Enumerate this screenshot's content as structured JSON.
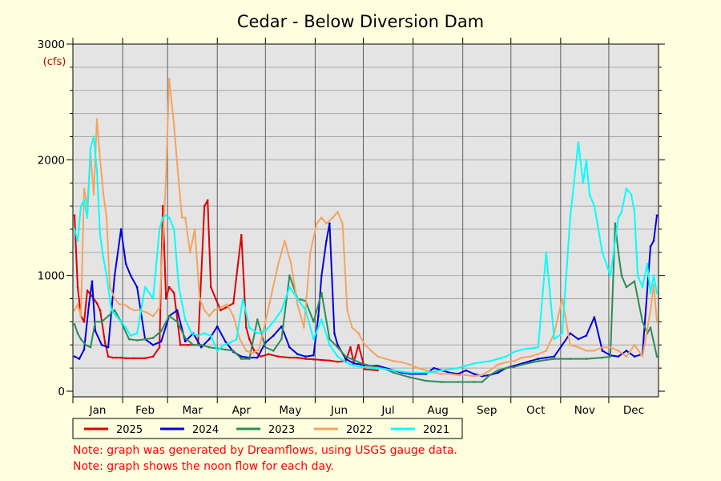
{
  "chart_data": {
    "type": "line",
    "title": "Cedar - Below Diversion Dam",
    "ylabel": "(cfs)",
    "xlabel": "",
    "ylim": [
      0,
      3000
    ],
    "y_ticks": [
      0,
      1000,
      2000,
      3000
    ],
    "x_ticks": [
      "Jan",
      "Feb",
      "Mar",
      "Apr",
      "May",
      "Jun",
      "Jul",
      "Aug",
      "Sep",
      "Oct",
      "Nov",
      "Dec"
    ],
    "grid": true,
    "legend_position": "bottom",
    "series": [
      {
        "name": "2025",
        "color": "#DD0000",
        "x": [
          1,
          3,
          5,
          7,
          9,
          12,
          15,
          17,
          20,
          22,
          25,
          27,
          30,
          33,
          38,
          45,
          50,
          54,
          56,
          58,
          60,
          63,
          67,
          72,
          78,
          82,
          84,
          86,
          89,
          92,
          95,
          100,
          105,
          108,
          110,
          113,
          117,
          122,
          128,
          135,
          140,
          145,
          150,
          155,
          160,
          165,
          170,
          173,
          175,
          178,
          182,
          190
        ],
        "y": [
          1520,
          900,
          650,
          600,
          870,
          820,
          760,
          700,
          420,
          300,
          290,
          290,
          290,
          285,
          285,
          285,
          300,
          380,
          1600,
          800,
          900,
          850,
          400,
          400,
          400,
          1600,
          1650,
          900,
          800,
          700,
          720,
          760,
          1350,
          550,
          450,
          350,
          300,
          320,
          300,
          290,
          290,
          280,
          275,
          270,
          265,
          255,
          260,
          380,
          250,
          400,
          190,
          180
        ]
      },
      {
        "name": "2024",
        "color": "#0000DD",
        "x": [
          1,
          4,
          7,
          10,
          12,
          14,
          18,
          22,
          26,
          30,
          33,
          36,
          40,
          45,
          50,
          55,
          60,
          65,
          70,
          75,
          80,
          85,
          90,
          95,
          100,
          105,
          110,
          115,
          120,
          125,
          130,
          135,
          140,
          145,
          150,
          153,
          155,
          158,
          160,
          163,
          165,
          170,
          175,
          180,
          185,
          190,
          195,
          200,
          205,
          210,
          215,
          220,
          225,
          230,
          235,
          240,
          245,
          250,
          255,
          260,
          265,
          270,
          275,
          280,
          285,
          290,
          295,
          300,
          305,
          310,
          315,
          320,
          325,
          330,
          335,
          340,
          345,
          350,
          355,
          360,
          362,
          364
        ],
        "y": [
          300,
          280,
          360,
          750,
          950,
          520,
          400,
          380,
          1000,
          1400,
          1100,
          1000,
          900,
          450,
          400,
          430,
          650,
          700,
          430,
          500,
          380,
          450,
          560,
          430,
          340,
          300,
          290,
          290,
          420,
          480,
          560,
          380,
          320,
          300,
          310,
          650,
          1000,
          1300,
          1450,
          500,
          400,
          280,
          240,
          230,
          220,
          220,
          200,
          180,
          160,
          150,
          150,
          150,
          200,
          180,
          160,
          150,
          180,
          150,
          130,
          140,
          160,
          200,
          220,
          240,
          260,
          280,
          290,
          300,
          400,
          500,
          450,
          480,
          640,
          350,
          310,
          300,
          350,
          300,
          320,
          1250,
          1300,
          1520
        ]
      },
      {
        "name": "2023",
        "color": "#2E8B57",
        "x": [
          1,
          3,
          5,
          8,
          11,
          14,
          18,
          22,
          26,
          30,
          35,
          40,
          45,
          50,
          55,
          60,
          65,
          70,
          75,
          80,
          85,
          90,
          95,
          100,
          105,
          110,
          115,
          120,
          125,
          130,
          135,
          140,
          145,
          150,
          155,
          160,
          165,
          170,
          175,
          180,
          185,
          190,
          195,
          200,
          210,
          220,
          230,
          240,
          250,
          255,
          260,
          265,
          270,
          275,
          280,
          290,
          300,
          310,
          320,
          330,
          335,
          338,
          340,
          342,
          345,
          350,
          355,
          358,
          360,
          364
        ],
        "y": [
          580,
          500,
          450,
          400,
          380,
          600,
          600,
          650,
          700,
          600,
          450,
          440,
          450,
          460,
          520,
          650,
          600,
          460,
          400,
          400,
          380,
          370,
          360,
          350,
          280,
          280,
          620,
          380,
          350,
          450,
          1000,
          800,
          780,
          600,
          850,
          450,
          380,
          300,
          270,
          240,
          220,
          210,
          190,
          160,
          120,
          90,
          80,
          80,
          80,
          80,
          140,
          180,
          200,
          210,
          230,
          260,
          280,
          280,
          280,
          290,
          300,
          1450,
          1200,
          1000,
          900,
          950,
          600,
          500,
          550,
          300
        ]
      },
      {
        "name": "2022",
        "color": "#F4A460",
        "x": [
          1,
          3,
          5,
          7,
          9,
          11,
          13,
          15,
          17,
          19,
          21,
          23,
          26,
          29,
          32,
          35,
          38,
          42,
          46,
          50,
          54,
          58,
          60,
          63,
          66,
          68,
          70,
          73,
          76,
          79,
          82,
          85,
          88,
          92,
          96,
          100,
          104,
          108,
          112,
          116,
          120,
          124,
          128,
          132,
          136,
          140,
          144,
          148,
          152,
          155,
          158,
          162,
          165,
          168,
          171,
          174,
          178,
          182,
          186,
          190,
          195,
          200,
          205,
          210,
          215,
          220,
          225,
          230,
          235,
          240,
          245,
          250,
          255,
          260,
          265,
          270,
          275,
          280,
          285,
          290,
          295,
          300,
          305,
          310,
          315,
          320,
          325,
          330,
          335,
          340,
          345,
          350,
          355,
          360,
          362,
          364
        ],
        "y": [
          700,
          750,
          650,
          1750,
          1600,
          2050,
          1700,
          2350,
          2000,
          1700,
          1500,
          900,
          800,
          750,
          750,
          720,
          700,
          700,
          680,
          650,
          720,
          1850,
          2700,
          2300,
          1800,
          1500,
          1500,
          1200,
          1400,
          800,
          700,
          650,
          700,
          720,
          750,
          650,
          450,
          350,
          330,
          360,
          600,
          850,
          1100,
          1300,
          1100,
          750,
          550,
          1200,
          1450,
          1500,
          1450,
          1500,
          1550,
          1450,
          700,
          550,
          500,
          400,
          350,
          300,
          280,
          260,
          250,
          230,
          200,
          180,
          160,
          150,
          150,
          140,
          140,
          130,
          140,
          180,
          230,
          250,
          260,
          290,
          300,
          320,
          350,
          500,
          800,
          400,
          380,
          350,
          350,
          380,
          380,
          350,
          300,
          400,
          300,
          700,
          920,
          600
        ]
      },
      {
        "name": "2021",
        "color": "#00FFFF",
        "x": [
          1,
          3,
          5,
          7,
          9,
          11,
          13,
          15,
          17,
          19,
          21,
          24,
          27,
          30,
          33,
          36,
          40,
          45,
          50,
          54,
          56,
          58,
          60,
          63,
          66,
          70,
          74,
          78,
          82,
          86,
          90,
          94,
          98,
          102,
          106,
          110,
          115,
          120,
          125,
          130,
          135,
          140,
          145,
          150,
          155,
          160,
          165,
          170,
          175,
          180,
          185,
          190,
          195,
          200,
          205,
          210,
          215,
          220,
          225,
          230,
          235,
          240,
          245,
          250,
          255,
          260,
          265,
          270,
          275,
          280,
          285,
          290,
          295,
          300,
          305,
          310,
          315,
          318,
          320,
          322,
          325,
          330,
          335,
          340,
          342,
          345,
          348,
          350,
          352,
          355,
          358,
          360,
          362,
          364
        ],
        "y": [
          1400,
          1300,
          1600,
          1650,
          1500,
          2100,
          2200,
          1900,
          1350,
          1150,
          1000,
          700,
          650,
          600,
          550,
          480,
          500,
          900,
          800,
          1400,
          1500,
          1520,
          1500,
          1400,
          900,
          620,
          500,
          480,
          500,
          480,
          350,
          400,
          420,
          450,
          800,
          550,
          500,
          520,
          600,
          700,
          900,
          800,
          700,
          450,
          620,
          400,
          300,
          250,
          220,
          210,
          200,
          200,
          190,
          180,
          170,
          160,
          160,
          160,
          170,
          180,
          190,
          200,
          220,
          240,
          250,
          260,
          280,
          300,
          340,
          360,
          370,
          380,
          1200,
          450,
          500,
          1500,
          2150,
          1800,
          2000,
          1700,
          1600,
          1200,
          1000,
          1500,
          1550,
          1750,
          1700,
          1550,
          1000,
          900,
          1100,
          850,
          1000,
          850
        ]
      }
    ]
  },
  "notes": [
    "Note: graph was generated by Dreamflows, using USGS gauge data.",
    "Note: graph shows the noon flow for each day."
  ],
  "colors": {
    "background": "#FFFFE0",
    "plot_background": "#E4E4E4",
    "grid": "#A0A0A0",
    "note_text": "#FF0000",
    "unit_text": "#CC0000"
  }
}
